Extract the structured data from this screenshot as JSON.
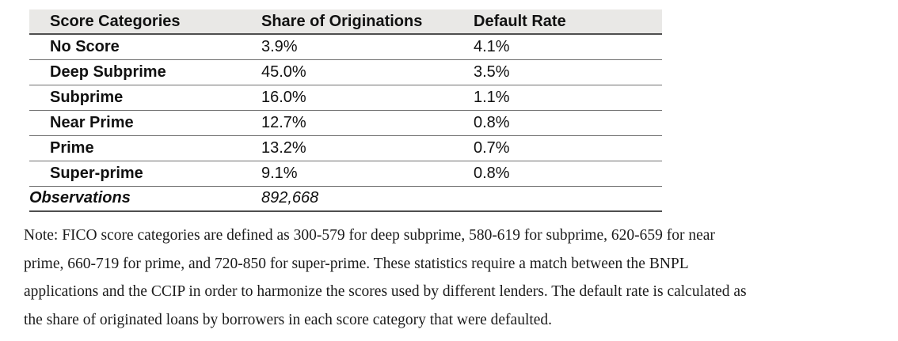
{
  "table": {
    "headers": {
      "category": "Score Categories",
      "share": "Share of Originations",
      "default_rate": "Default Rate"
    },
    "rows": [
      {
        "category": "No Score",
        "share": "3.9%",
        "default_rate": "4.1%"
      },
      {
        "category": "Deep Subprime",
        "share": "45.0%",
        "default_rate": "3.5%"
      },
      {
        "category": "Subprime",
        "share": "16.0%",
        "default_rate": "1.1%"
      },
      {
        "category": "Near Prime",
        "share": "12.7%",
        "default_rate": "0.8%"
      },
      {
        "category": "Prime",
        "share": "13.2%",
        "default_rate": "0.7%"
      },
      {
        "category": "Super-prime",
        "share": "9.1%",
        "default_rate": "0.8%"
      }
    ],
    "footer": {
      "label": "Observations",
      "value": "892,668"
    }
  },
  "note": {
    "lines": [
      "Note: FICO score categories are defined as 300-579 for deep subprime, 580-619 for subprime, 620-659 for near",
      "prime, 660-719 for prime, and 720-850 for super-prime. These statistics require a match between the BNPL",
      "applications and the CCIP in order to harmonize the scores used by different lenders. The default rate is calculated as",
      "the share of originated loans by borrowers in each score category that were defaulted."
    ]
  },
  "colors": {
    "header_background": "#e9e8e6",
    "rule_dark": "#4f4f4f",
    "rule_light": "#707070"
  }
}
